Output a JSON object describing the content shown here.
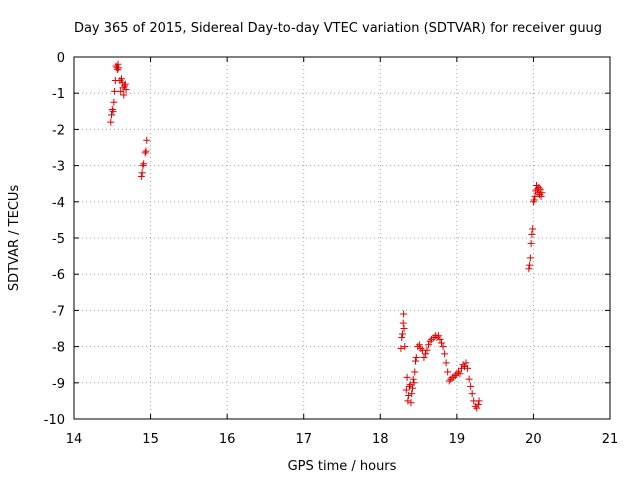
{
  "chart_data": {
    "type": "scatter",
    "title": "Day 365 of 2015, Sidereal Day-to-day VTEC variation (SDTVAR) for receiver guug",
    "xlabel": "GPS time / hours",
    "ylabel": "SDTVAR / TECUs",
    "xlim": [
      14,
      21
    ],
    "ylim": [
      -10,
      0
    ],
    "xticks": [
      "14",
      "15",
      "16",
      "17",
      "18",
      "19",
      "20",
      "21"
    ],
    "yticks": [
      "0",
      "-1",
      "-2",
      "-3",
      "-4",
      "-5",
      "-6",
      "-7",
      "-8",
      "-9",
      "-10"
    ],
    "grid": true,
    "marker": "+",
    "color": "#e00000",
    "series": [
      {
        "name": "SDTVAR",
        "points": [
          [
            14.48,
            -1.8
          ],
          [
            14.49,
            -1.6
          ],
          [
            14.5,
            -1.45
          ],
          [
            14.51,
            -1.5
          ],
          [
            14.52,
            -1.25
          ],
          [
            14.53,
            -0.95
          ],
          [
            14.54,
            -0.65
          ],
          [
            14.55,
            -0.25
          ],
          [
            14.56,
            -0.3
          ],
          [
            14.57,
            -0.35
          ],
          [
            14.575,
            -0.2
          ],
          [
            14.58,
            -0.3
          ],
          [
            14.6,
            -0.65
          ],
          [
            14.61,
            -0.95
          ],
          [
            14.62,
            -0.6
          ],
          [
            14.63,
            -0.7
          ],
          [
            14.64,
            -0.85
          ],
          [
            14.65,
            -1.05
          ],
          [
            14.66,
            -0.8
          ],
          [
            14.67,
            -0.75
          ],
          [
            14.68,
            -0.9
          ],
          [
            14.88,
            -3.3
          ],
          [
            14.89,
            -3.2
          ],
          [
            14.9,
            -3.0
          ],
          [
            14.91,
            -2.95
          ],
          [
            14.93,
            -2.65
          ],
          [
            14.94,
            -2.6
          ],
          [
            14.95,
            -2.3
          ],
          [
            18.27,
            -8.05
          ],
          [
            18.28,
            -7.75
          ],
          [
            18.29,
            -7.65
          ],
          [
            18.3,
            -7.35
          ],
          [
            18.305,
            -7.1
          ],
          [
            18.31,
            -7.5
          ],
          [
            18.32,
            -8.0
          ],
          [
            18.34,
            -9.2
          ],
          [
            18.35,
            -8.85
          ],
          [
            18.36,
            -9.5
          ],
          [
            18.37,
            -9.35
          ],
          [
            18.38,
            -9.1
          ],
          [
            18.39,
            -9.05
          ],
          [
            18.4,
            -9.55
          ],
          [
            18.41,
            -9.3
          ],
          [
            18.42,
            -9.15
          ],
          [
            18.43,
            -8.9
          ],
          [
            18.44,
            -9.0
          ],
          [
            18.45,
            -8.7
          ],
          [
            18.46,
            -8.4
          ],
          [
            18.47,
            -8.3
          ],
          [
            18.49,
            -8.0
          ],
          [
            18.51,
            -7.95
          ],
          [
            18.53,
            -8.05
          ],
          [
            18.55,
            -8.1
          ],
          [
            18.57,
            -8.3
          ],
          [
            18.59,
            -8.2
          ],
          [
            18.61,
            -8.1
          ],
          [
            18.63,
            -7.95
          ],
          [
            18.65,
            -7.85
          ],
          [
            18.67,
            -7.8
          ],
          [
            18.7,
            -7.75
          ],
          [
            18.72,
            -7.7
          ],
          [
            18.74,
            -7.75
          ],
          [
            18.76,
            -7.7
          ],
          [
            18.78,
            -7.8
          ],
          [
            18.8,
            -7.9
          ],
          [
            18.82,
            -8.0
          ],
          [
            18.84,
            -8.2
          ],
          [
            18.86,
            -8.45
          ],
          [
            18.88,
            -8.7
          ],
          [
            18.9,
            -8.95
          ],
          [
            18.92,
            -8.9
          ],
          [
            18.94,
            -8.85
          ],
          [
            18.96,
            -8.85
          ],
          [
            18.98,
            -8.8
          ],
          [
            19.0,
            -8.75
          ],
          [
            19.02,
            -8.7
          ],
          [
            19.04,
            -8.75
          ],
          [
            19.06,
            -8.6
          ],
          [
            19.08,
            -8.5
          ],
          [
            19.1,
            -8.55
          ],
          [
            19.12,
            -8.45
          ],
          [
            19.14,
            -8.6
          ],
          [
            19.16,
            -8.9
          ],
          [
            19.18,
            -9.1
          ],
          [
            19.2,
            -9.3
          ],
          [
            19.22,
            -9.5
          ],
          [
            19.24,
            -9.65
          ],
          [
            19.26,
            -9.7
          ],
          [
            19.28,
            -9.6
          ],
          [
            19.29,
            -9.5
          ],
          [
            19.94,
            -5.85
          ],
          [
            19.95,
            -5.75
          ],
          [
            19.96,
            -5.55
          ],
          [
            19.97,
            -5.15
          ],
          [
            19.98,
            -4.9
          ],
          [
            19.99,
            -4.75
          ],
          [
            20.0,
            -4.0
          ],
          [
            20.01,
            -3.95
          ],
          [
            20.02,
            -3.85
          ],
          [
            20.03,
            -3.7
          ],
          [
            20.04,
            -3.55
          ],
          [
            20.05,
            -3.65
          ],
          [
            20.06,
            -3.75
          ],
          [
            20.07,
            -3.6
          ],
          [
            20.08,
            -3.8
          ],
          [
            20.09,
            -3.65
          ],
          [
            20.1,
            -3.85
          ],
          [
            20.11,
            -3.75
          ]
        ]
      }
    ]
  }
}
